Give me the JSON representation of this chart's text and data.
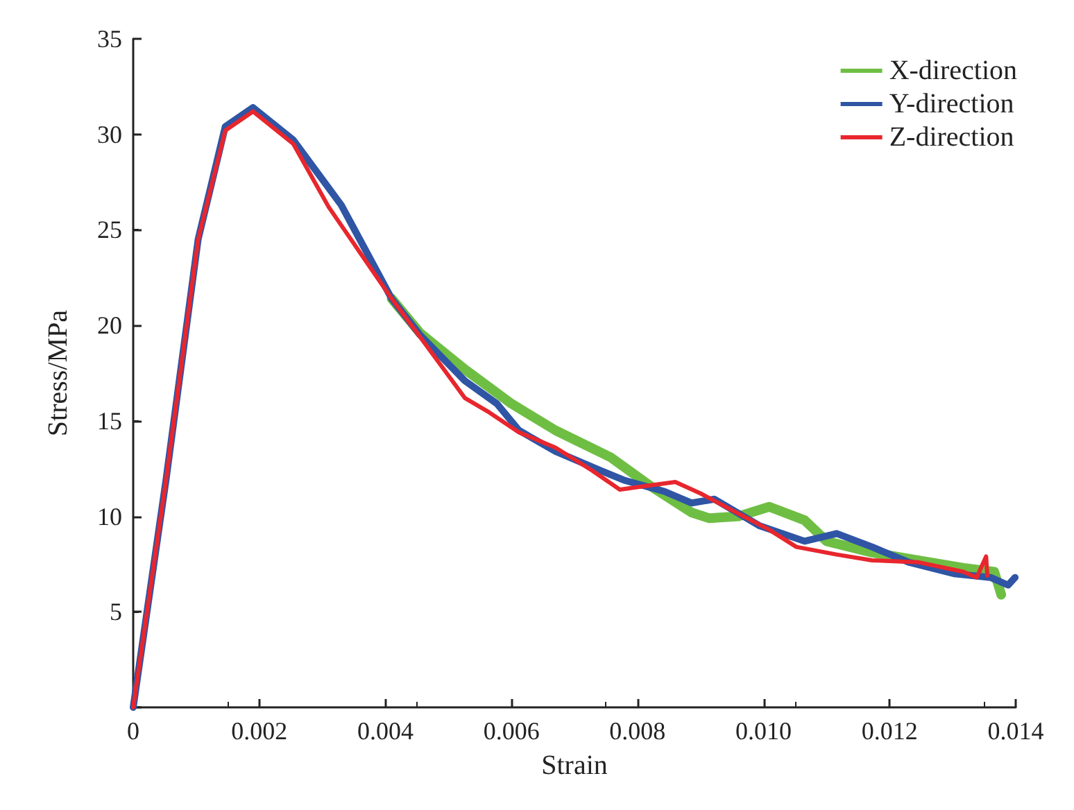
{
  "chart_data": {
    "type": "line",
    "xlabel": "Strain",
    "ylabel": "Stress/MPa",
    "xlim": [
      0,
      0.014
    ],
    "ylim": [
      0,
      35
    ],
    "xticks": [
      0,
      0.002,
      0.004,
      0.006,
      0.008,
      {
        "value": 0.01,
        "label": "0.010"
      },
      0.012,
      0.014
    ],
    "yticks": [
      {
        "value": 0,
        "label": null
      },
      5,
      10,
      15,
      20,
      25,
      30,
      35
    ],
    "grid": false,
    "legend": "top right",
    "line_style": "solid",
    "marker": "none",
    "series": [
      {
        "name": "X-direction",
        "color": "#6fbe44",
        "x": [
          0.0041,
          0.00455,
          0.00526,
          0.006,
          0.0067,
          0.00757,
          0.0082,
          0.00886,
          0.00914,
          0.0096,
          0.01009,
          0.01065,
          0.011,
          0.01173,
          0.01245,
          0.01317,
          0.01366,
          0.01377
        ],
        "values": [
          21.4,
          19.6,
          17.7,
          15.9,
          14.5,
          13.1,
          11.6,
          10.2,
          9.9,
          10,
          10.5,
          9.8,
          8.7,
          8.1,
          7.7,
          7.3,
          7.1,
          5.9
        ]
      },
      {
        "name": "Y-direction",
        "color": "#2f55a4",
        "x": [
          0,
          0.00052,
          0.00103,
          0.00146,
          0.0019,
          0.00254,
          0.0033,
          0.0041,
          0.00455,
          0.00526,
          0.00577,
          0.00612,
          0.0067,
          0.00741,
          0.00778,
          0.00843,
          0.00886,
          0.00922,
          0.00994,
          0.01065,
          0.01116,
          0.01172,
          0.0123,
          0.01302,
          0.0136,
          0.01388,
          0.01399
        ],
        "values": [
          0,
          11.9,
          24.5,
          30.4,
          31.4,
          29.7,
          26.3,
          21.4,
          19.5,
          17.1,
          15.9,
          14.5,
          13.4,
          12.4,
          11.9,
          11.3,
          10.7,
          10.9,
          9.5,
          8.7,
          9.1,
          8.4,
          7.6,
          7,
          6.8,
          6.4,
          6.8
        ]
      },
      {
        "name": "Z-direction",
        "color": "#e8262d",
        "x": [
          0,
          0.00052,
          0.00103,
          0.00146,
          0.0019,
          0.00254,
          0.0031,
          0.0041,
          0.00455,
          0.00526,
          0.00562,
          0.00612,
          0.0067,
          0.00728,
          0.00772,
          0.00815,
          0.0086,
          0.009,
          0.00957,
          0.01009,
          0.01052,
          0.01116,
          0.01172,
          0.01245,
          0.01317,
          0.01338,
          0.01353,
          0.01355
        ],
        "values": [
          0,
          11.9,
          24.5,
          30.2,
          31.2,
          29.5,
          26.2,
          21.4,
          19.4,
          16.2,
          15.5,
          14.4,
          13.6,
          12.4,
          11.4,
          11.6,
          11.8,
          11.2,
          10.2,
          9.3,
          8.4,
          8,
          7.7,
          7.6,
          7.1,
          6.8,
          7.9,
          6.9
        ]
      }
    ]
  }
}
